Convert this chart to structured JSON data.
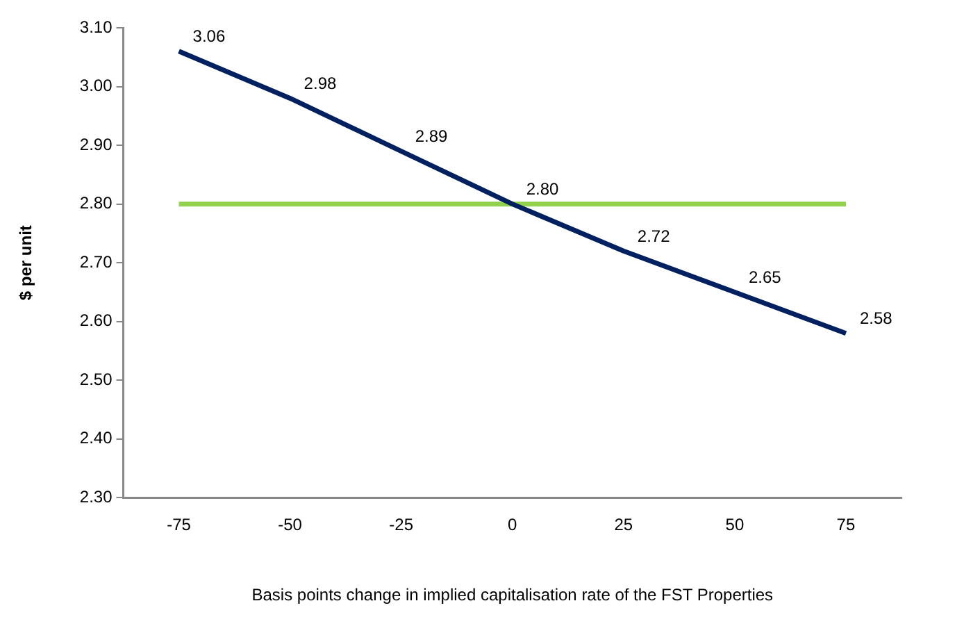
{
  "chart_data": {
    "type": "line",
    "xlabel": "Basis points change in implied capitalisation rate of the FST Properties",
    "ylabel": "$ per unit",
    "categories": [
      "-75",
      "-50",
      "-25",
      "0",
      "25",
      "50",
      "75"
    ],
    "series": [
      {
        "color": "#002060",
        "values": [
          3.06,
          2.98,
          2.89,
          2.8,
          2.72,
          2.65,
          2.58
        ],
        "value_labels": [
          "3.06",
          "2.98",
          "2.89",
          "2.80",
          "2.72",
          "2.65",
          "2.58"
        ]
      }
    ],
    "ref_lines": [
      {
        "axis": "y",
        "value": 2.8,
        "color": "#92d050"
      }
    ],
    "ylim": [
      2.3,
      3.1
    ],
    "yticks": [
      {
        "value": 2.3,
        "label": "2.30"
      },
      {
        "value": 2.4,
        "label": "2.40"
      },
      {
        "value": 2.5,
        "label": "2.50"
      },
      {
        "value": 2.6,
        "label": "2.60"
      },
      {
        "value": 2.7,
        "label": "2.70"
      },
      {
        "value": 2.8,
        "label": "2.80"
      },
      {
        "value": 2.9,
        "label": "2.90"
      },
      {
        "value": 3.0,
        "label": "3.00"
      },
      {
        "value": 3.1,
        "label": "3.10"
      }
    ],
    "grid": false,
    "legend": false,
    "marker": "none",
    "line_style": "solid"
  }
}
